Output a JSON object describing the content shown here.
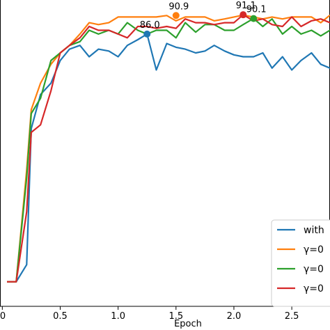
{
  "chart_data": {
    "type": "line",
    "xlabel": "Epoch",
    "ylabel": "",
    "title": "",
    "xlim": [
      -0.02,
      2.83
    ],
    "ylim": [
      14,
      95
    ],
    "x_ticks": [
      {
        "value": 0.0,
        "label": "0"
      },
      {
        "value": 0.5,
        "label": "0.5"
      },
      {
        "value": 1.0,
        "label": "1.0"
      },
      {
        "value": 1.5,
        "label": "1.5"
      },
      {
        "value": 2.0,
        "label": "2.0"
      },
      {
        "value": 2.5,
        "label": "2.5"
      }
    ],
    "grid": false,
    "legend_placement": "lower-right",
    "series": [
      {
        "name": "with",
        "color": "#1f77b4",
        "x": [
          0.04,
          0.12,
          0.21,
          0.25,
          0.33,
          0.42,
          0.5,
          0.58,
          0.67,
          0.75,
          0.83,
          0.92,
          1.0,
          1.08,
          1.17,
          1.25,
          1.33,
          1.42,
          1.5,
          1.58,
          1.67,
          1.75,
          1.83,
          1.92,
          2.0,
          2.08,
          2.17,
          2.25,
          2.33,
          2.42,
          2.5,
          2.58,
          2.67,
          2.75,
          2.83
        ],
        "y": [
          20.5,
          20.5,
          25,
          61,
          70,
          73,
          79,
          82,
          83,
          80,
          82,
          81.5,
          80,
          83,
          84.5,
          86.0,
          76.5,
          83.5,
          82.5,
          82,
          81,
          81.5,
          83,
          81.5,
          80.5,
          80,
          80,
          81,
          77,
          80,
          76.5,
          79,
          81,
          78,
          77
        ]
      },
      {
        "name": "γ=0",
        "color": "#ff7f0e",
        "x": [
          0.04,
          0.12,
          0.21,
          0.25,
          0.33,
          0.42,
          0.5,
          0.58,
          0.67,
          0.75,
          0.83,
          0.92,
          1.0,
          1.08,
          1.17,
          1.25,
          1.33,
          1.42,
          1.5,
          1.58,
          1.67,
          1.75,
          1.83,
          1.92,
          2.0,
          2.08,
          2.17,
          2.25,
          2.33,
          2.42,
          2.5,
          2.58,
          2.67,
          2.75,
          2.83
        ],
        "y": [
          20.5,
          20.5,
          50,
          66,
          73,
          78,
          81,
          83,
          86,
          89,
          88.5,
          89,
          90.5,
          90.5,
          90.5,
          90.5,
          90.5,
          90.9,
          89.5,
          90.5,
          90.5,
          90.5,
          89.5,
          90,
          90.5,
          91,
          90.5,
          90,
          90.5,
          90,
          90.5,
          90.5,
          90.5,
          89,
          91
        ]
      },
      {
        "name": "γ=0",
        "color": "#2ca02c",
        "x": [
          0.04,
          0.12,
          0.21,
          0.25,
          0.33,
          0.42,
          0.5,
          0.58,
          0.67,
          0.75,
          0.83,
          0.92,
          1.0,
          1.08,
          1.17,
          1.25,
          1.33,
          1.42,
          1.5,
          1.58,
          1.67,
          1.75,
          1.83,
          1.92,
          2.0,
          2.08,
          2.17,
          2.25,
          2.33,
          2.42,
          2.5,
          2.58,
          2.67,
          2.75,
          2.83
        ],
        "y": [
          20.5,
          20.5,
          48,
          65,
          69,
          79,
          81,
          83,
          84,
          87,
          86,
          87,
          86,
          89,
          87,
          86,
          87,
          87,
          85,
          89,
          86.5,
          88.5,
          88.5,
          87,
          87,
          88.5,
          90.1,
          88,
          90,
          86,
          88,
          86,
          87,
          85.5,
          87
        ]
      },
      {
        "name": "γ=0",
        "color": "#d62728",
        "x": [
          0.04,
          0.12,
          0.21,
          0.25,
          0.33,
          0.42,
          0.5,
          0.58,
          0.67,
          0.75,
          0.83,
          0.92,
          1.0,
          1.08,
          1.17,
          1.25,
          1.33,
          1.42,
          1.5,
          1.58,
          1.67,
          1.75,
          1.83,
          1.92,
          2.0,
          2.08,
          2.17,
          2.25,
          2.33,
          2.42,
          2.5,
          2.58,
          2.67,
          2.75,
          2.83
        ],
        "y": [
          20.5,
          20.5,
          39,
          60,
          62,
          71,
          81,
          83,
          85,
          88,
          87,
          87,
          86,
          85,
          88,
          88,
          87.5,
          88,
          87.5,
          90,
          89,
          89,
          88.5,
          89,
          89,
          91.1,
          89.5,
          90,
          88.5,
          88,
          90.5,
          88,
          89.5,
          90,
          89
        ]
      }
    ],
    "annotations": [
      {
        "series": 0,
        "x": 1.25,
        "y": 86.0,
        "text": "86.0"
      },
      {
        "series": 1,
        "x": 1.5,
        "y": 90.9,
        "text": "90.9"
      },
      {
        "series": 3,
        "x": 2.08,
        "y": 91.1,
        "text": "91.1"
      },
      {
        "series": 2,
        "x": 2.17,
        "y": 90.1,
        "text": "90.1"
      }
    ]
  }
}
